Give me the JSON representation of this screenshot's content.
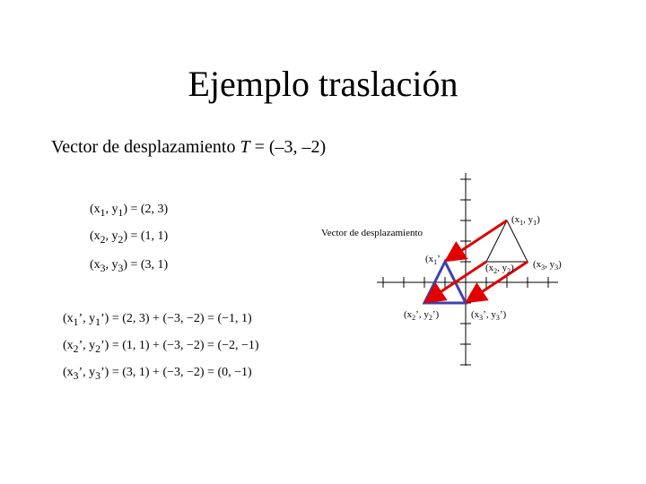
{
  "title": "Ejemplo traslación",
  "subtitle": {
    "parts": [
      "Vector de desplazamiento ",
      "T",
      " = (–3, –2)"
    ]
  },
  "equations": [
    {
      "parts": [
        "(x",
        "1",
        ", y",
        "1",
        ") = (2, 3)"
      ]
    },
    {
      "parts": [
        "(x",
        "2",
        ", y",
        "2",
        ") = (1, 1)"
      ]
    },
    {
      "parts": [
        "(x",
        "3",
        ", y",
        "3",
        ") = (3, 1)"
      ]
    },
    {
      "parts": [
        "(x",
        "1",
        "’, y",
        "1",
        "’) = (2, 3) + (−3, −2) = (−1, 1)"
      ]
    },
    {
      "parts": [
        "(x",
        "2",
        "’, y",
        "2",
        "’) = (1, 1) + (−3, −2) = (−2, −1)"
      ]
    },
    {
      "parts": [
        "(x",
        "3",
        "’, y",
        "3",
        "’) = (3, 1) + (−3, −2) = (0, −1)"
      ]
    }
  ],
  "diagram": {
    "caption": "Vector de desplazamiento",
    "labels": [
      {
        "parts": [
          "(x",
          "1",
          ", y",
          "1",
          ")"
        ]
      },
      {
        "parts": [
          "(x",
          "2",
          ", y",
          "2",
          ")"
        ]
      },
      {
        "parts": [
          "(x",
          "3",
          ", y",
          "3",
          ")"
        ]
      },
      {
        "parts": [
          "(x",
          "1",
          "’"
        ]
      },
      {
        "parts": [
          "(x",
          "2",
          "’, y",
          "2",
          "’)"
        ]
      },
      {
        "parts": [
          "(x",
          "3",
          "’, y",
          "3",
          "’)"
        ]
      }
    ]
  }
}
